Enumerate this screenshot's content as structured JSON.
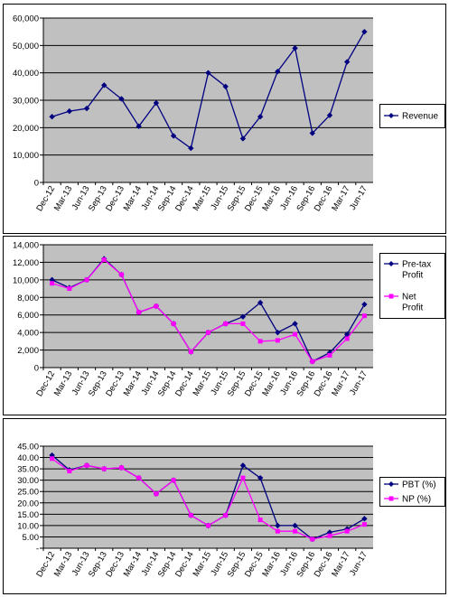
{
  "chart_data": [
    {
      "type": "line",
      "categories": [
        "Dec-12",
        "Mar-13",
        "Jun-13",
        "Sep-13",
        "Dec-13",
        "Mar-14",
        "Jun-14",
        "Sep-14",
        "Dec-14",
        "Mar-15",
        "Jun-15",
        "Sep-15",
        "Dec-15",
        "Mar-16",
        "Jun-16",
        "Sep-16",
        "Dec-16",
        "Mar-17",
        "Jun-17"
      ],
      "y_ticks": [
        "0",
        "10,000",
        "20,000",
        "30,000",
        "40,000",
        "50,000",
        "60,000"
      ],
      "ylim": [
        0,
        60000
      ],
      "grid": true,
      "legend": "right",
      "series": [
        {
          "name": "Revenue",
          "color": "#000080",
          "marker": "diamond",
          "values": [
            24000,
            26000,
            27000,
            35500,
            30500,
            20500,
            29000,
            17000,
            12500,
            40000,
            35000,
            16000,
            24000,
            40500,
            49000,
            18000,
            24500,
            44000,
            55000
          ]
        }
      ]
    },
    {
      "type": "line",
      "categories": [
        "Dec-12",
        "Mar-13",
        "Jun-13",
        "Sep-13",
        "Dec-13",
        "Mar-14",
        "Jun-14",
        "Sep-14",
        "Dec-14",
        "Mar-15",
        "Jun-15",
        "Sep-15",
        "Dec-15",
        "Mar-16",
        "Jun-16",
        "Sep-16",
        "Dec-16",
        "Mar-17",
        "Jun-17"
      ],
      "y_ticks": [
        "0",
        "2,000",
        "4,000",
        "6,000",
        "8,000",
        "10,000",
        "12,000",
        "14,000"
      ],
      "ylim": [
        0,
        14000
      ],
      "grid": true,
      "legend": "right",
      "series": [
        {
          "name": "Pre-tax Profit",
          "color": "#000080",
          "marker": "diamond",
          "values": [
            10000,
            9100,
            10000,
            12400,
            10600,
            6300,
            7000,
            5000,
            1800,
            4000,
            5000,
            5800,
            7400,
            4000,
            5000,
            700,
            1700,
            3800,
            7200
          ]
        },
        {
          "name": "Net Profit",
          "color": "#ff00ff",
          "marker": "square",
          "values": [
            9600,
            9000,
            10000,
            12300,
            10600,
            6300,
            7000,
            5000,
            1800,
            4000,
            5000,
            5000,
            3000,
            3100,
            3800,
            700,
            1400,
            3300,
            5900
          ]
        }
      ]
    },
    {
      "type": "line",
      "categories": [
        "Dec-12",
        "Mar-13",
        "Jun-13",
        "Sep-13",
        "Dec-13",
        "Mar-14",
        "Jun-14",
        "Sep-14",
        "Dec-14",
        "Mar-15",
        "Jun-15",
        "Sep-15",
        "Dec-15",
        "Mar-16",
        "Jun-16",
        "Sep-16",
        "Dec-16",
        "Mar-17",
        "Jun-17"
      ],
      "y_ticks": [
        "-",
        "5.00",
        "10.00",
        "15.00",
        "20.00",
        "25.00",
        "30.00",
        "35.00",
        "40.00",
        "45.00"
      ],
      "ylim": [
        0,
        45
      ],
      "grid": true,
      "legend": "right",
      "series": [
        {
          "name": "PBT (%)",
          "color": "#000080",
          "marker": "diamond",
          "values": [
            41,
            34.5,
            36.5,
            35,
            35.5,
            31,
            24,
            30,
            14.5,
            10,
            14.5,
            36.5,
            31,
            10,
            10,
            4,
            7,
            8.5,
            13
          ]
        },
        {
          "name": "NP (%)",
          "color": "#ff00ff",
          "marker": "square",
          "values": [
            39.5,
            34,
            36.5,
            35,
            35.5,
            31,
            24,
            30,
            14.5,
            10,
            14.5,
            31,
            12.5,
            7.5,
            7.5,
            4,
            5.5,
            7.5,
            10.5
          ]
        }
      ]
    }
  ]
}
